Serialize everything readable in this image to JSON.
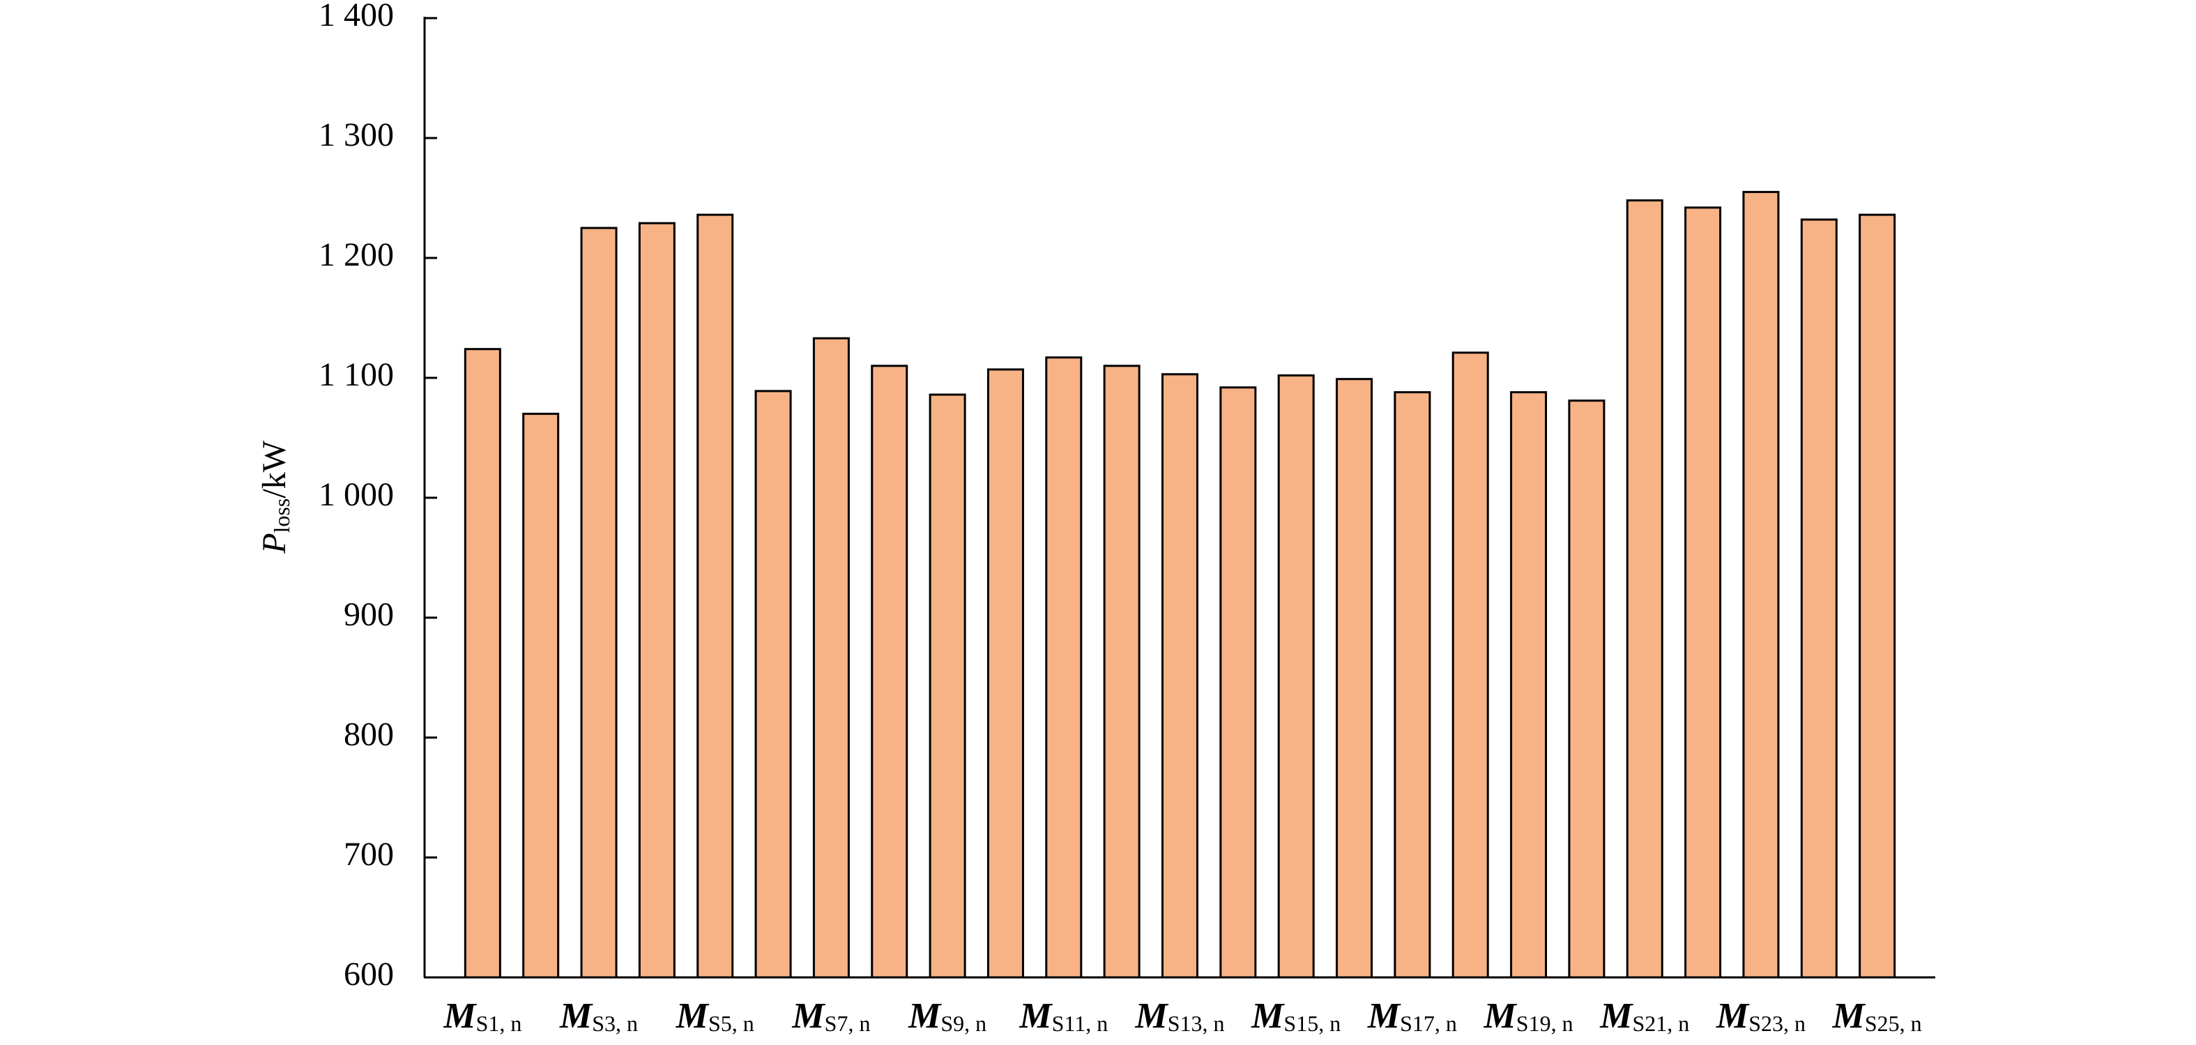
{
  "chart_data": {
    "type": "bar",
    "y_label": {
      "symbol": "P",
      "subscript": "loss",
      "unit": "/kW"
    },
    "category_symbol": "M",
    "categories": [
      "S1, n",
      null,
      "S3, n",
      null,
      "S5, n",
      null,
      "S7, n",
      null,
      "S9, n",
      null,
      "S11, n",
      null,
      "S13, n",
      null,
      "S15, n",
      null,
      "S17, n",
      null,
      "S19, n",
      null,
      "S21, n",
      null,
      "S23, n",
      null,
      "S25, n"
    ],
    "values": [
      1124,
      1070,
      1225,
      1229,
      1236,
      1089,
      1133,
      1110,
      1086,
      1107,
      1117,
      1110,
      1103,
      1092,
      1102,
      1099,
      1088,
      1121,
      1088,
      1081,
      1248,
      1242,
      1255,
      1232,
      1236
    ],
    "color": "#f7b386",
    "ylim": [
      600,
      1400
    ],
    "yticks": [
      600,
      700,
      800,
      900,
      {
        "value": 1000,
        "label": "1 000"
      },
      {
        "value": 1100,
        "label": "1 100"
      },
      {
        "value": 1200,
        "label": "1 200"
      },
      {
        "value": 1300,
        "label": "1 300"
      },
      {
        "value": 1400,
        "label": "1 400"
      }
    ],
    "grid": false
  }
}
